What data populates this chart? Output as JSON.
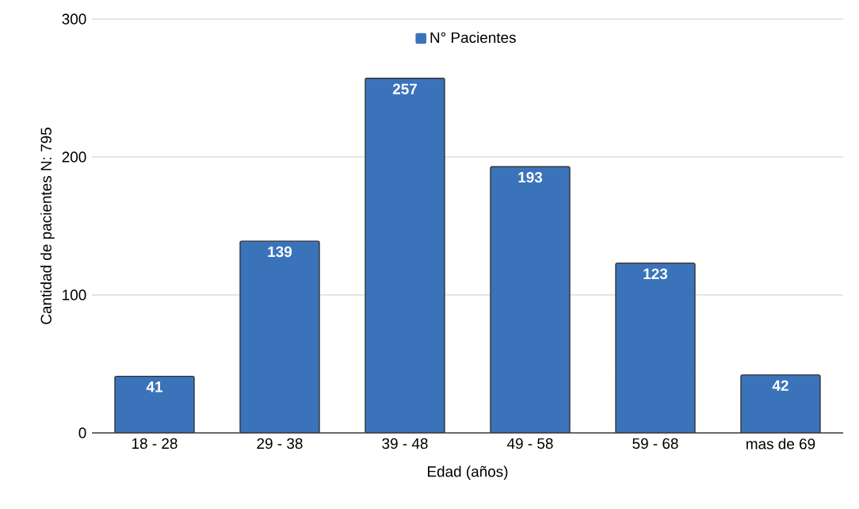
{
  "chart_data": {
    "type": "bar",
    "xlabel": "Edad (años)",
    "ylabel": "Cantidad de pacientes N: 795",
    "categories": [
      "18 - 28",
      "29 - 38",
      "39 - 48",
      "49 - 58",
      "59 - 68",
      "mas de 69"
    ],
    "series": [
      {
        "name": "N° Pacientes",
        "color": "#3b73bb",
        "values": [
          41,
          139,
          257,
          193,
          123,
          42
        ]
      }
    ],
    "ylim": [
      0,
      300
    ],
    "yticks": [
      0,
      100,
      200,
      300
    ],
    "grid": "y",
    "legend": "top",
    "data_labels": true
  }
}
